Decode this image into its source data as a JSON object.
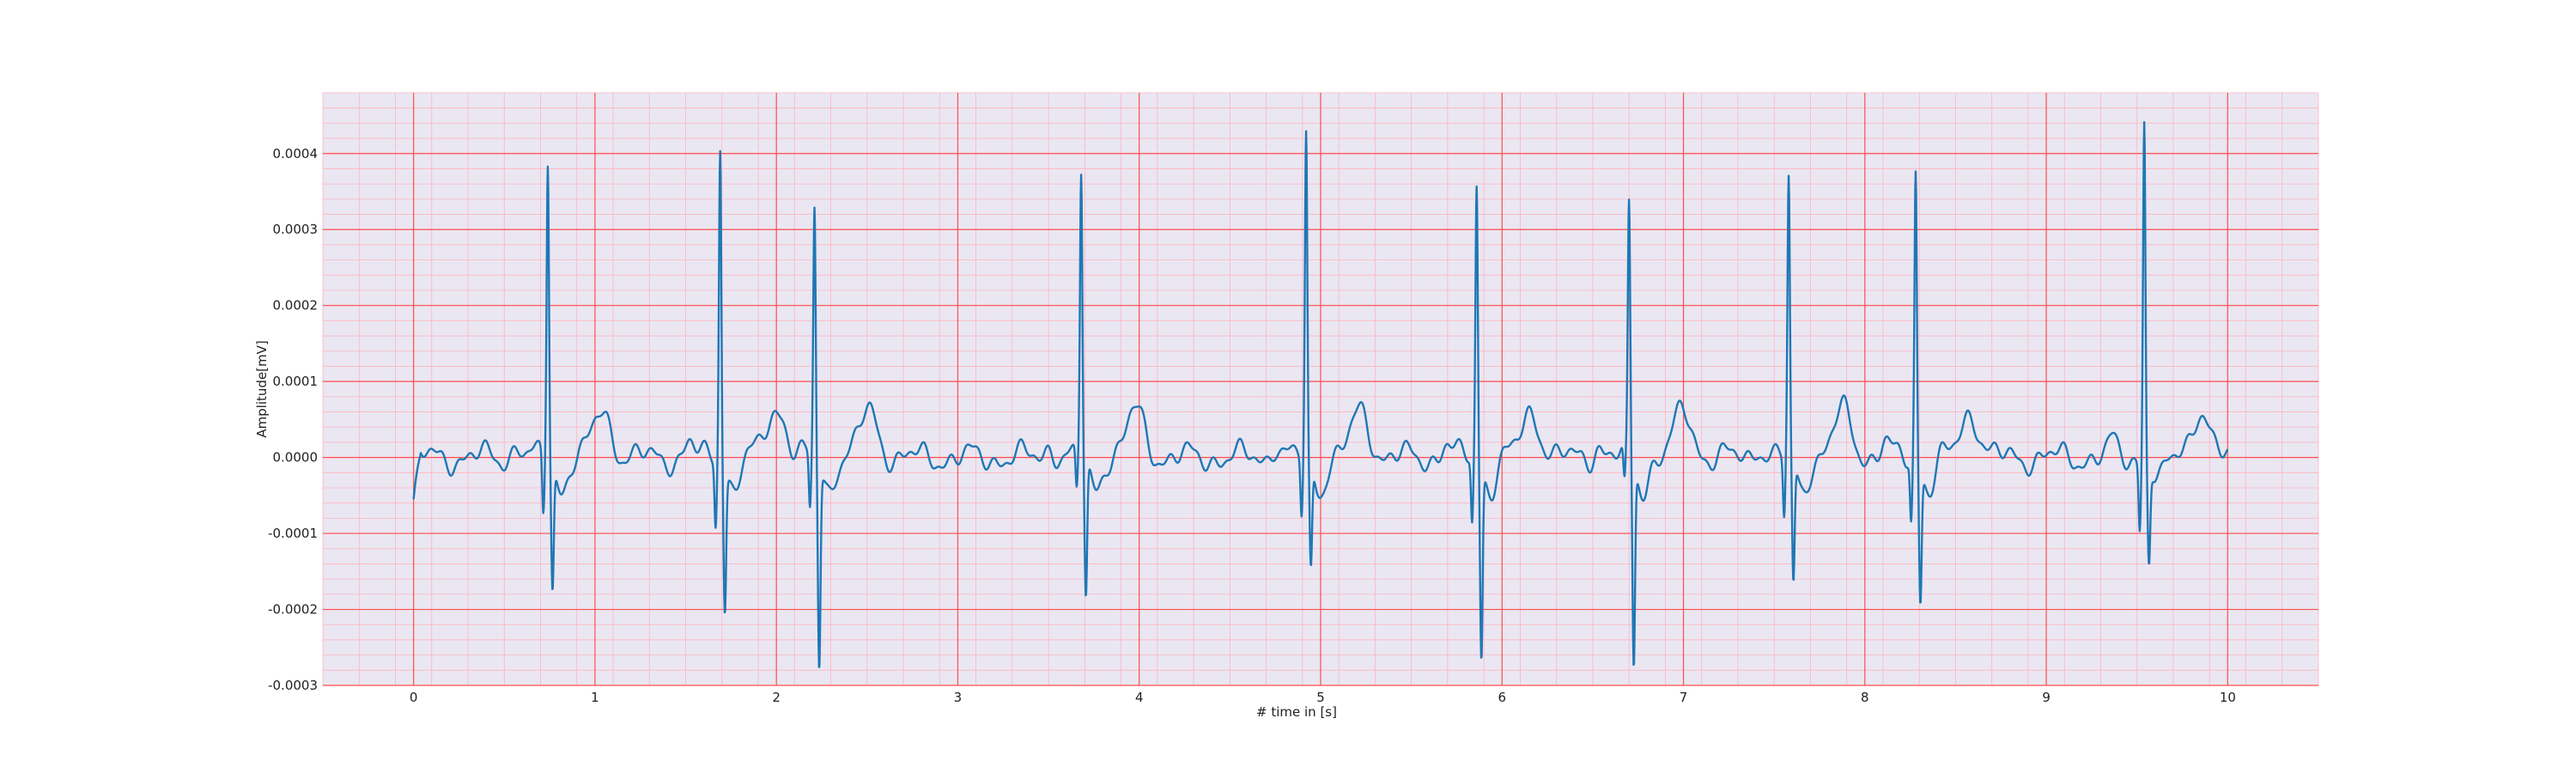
{
  "chart_data": {
    "type": "line",
    "title": "",
    "xlabel": "# time in [s]",
    "ylabel": "Amplitude[mV]",
    "xlim": [
      -0.5,
      10.5
    ],
    "ylim": [
      -0.0003,
      0.00048
    ],
    "xticks": [
      0,
      1,
      2,
      3,
      4,
      5,
      6,
      7,
      8,
      9,
      10
    ],
    "xtick_labels": [
      "0",
      "1",
      "2",
      "3",
      "4",
      "5",
      "6",
      "7",
      "8",
      "9",
      "10"
    ],
    "yticks": [
      -0.0003,
      -0.0002,
      -0.0001,
      0.0,
      0.0001,
      0.0002,
      0.0003,
      0.0004
    ],
    "ytick_labels": [
      "-0.0003",
      "-0.0002",
      "-0.0001",
      "0.0000",
      "0.0001",
      "0.0002",
      "0.0003",
      "0.0004"
    ],
    "grid": {
      "major": true,
      "minor": true,
      "major_color": "#ff4d4d",
      "minor_color": "#ffb3c0",
      "background": "#eae7f2"
    },
    "series": [
      {
        "color": "#1f77b4",
        "beats": [
          {
            "t": 0.74,
            "r": 0.000395,
            "s": -0.000162,
            "q": -7.8e-05
          },
          {
            "t": 1.69,
            "r": 0.000418,
            "s": -0.000181,
            "q": -8.3e-05
          },
          {
            "t": 2.21,
            "r": 0.000326,
            "s": -0.000265,
            "q": -7.2e-05
          },
          {
            "t": 3.68,
            "r": 0.000375,
            "s": -0.000178,
            "q": -5.2e-05
          },
          {
            "t": 4.92,
            "r": 0.000425,
            "s": -0.000141,
            "q": -7.5e-05
          },
          {
            "t": 5.86,
            "r": 0.000362,
            "s": -0.000249,
            "q": -8.3e-05
          },
          {
            "t": 6.7,
            "r": 0.000329,
            "s": -0.000264,
            "q": -4.7e-05
          },
          {
            "t": 7.58,
            "r": 0.000362,
            "s": -0.000162,
            "q": -7.9e-05
          },
          {
            "t": 8.28,
            "r": 0.000381,
            "s": -0.000173,
            "q": -7.9e-05
          },
          {
            "t": 9.54,
            "r": 0.000452,
            "s": -0.000123,
            "q": -8.6e-05
          }
        ],
        "t_start": 0.0,
        "t_end": 10.0,
        "start_value": -5.5e-05,
        "end_value": -5e-06
      }
    ]
  }
}
